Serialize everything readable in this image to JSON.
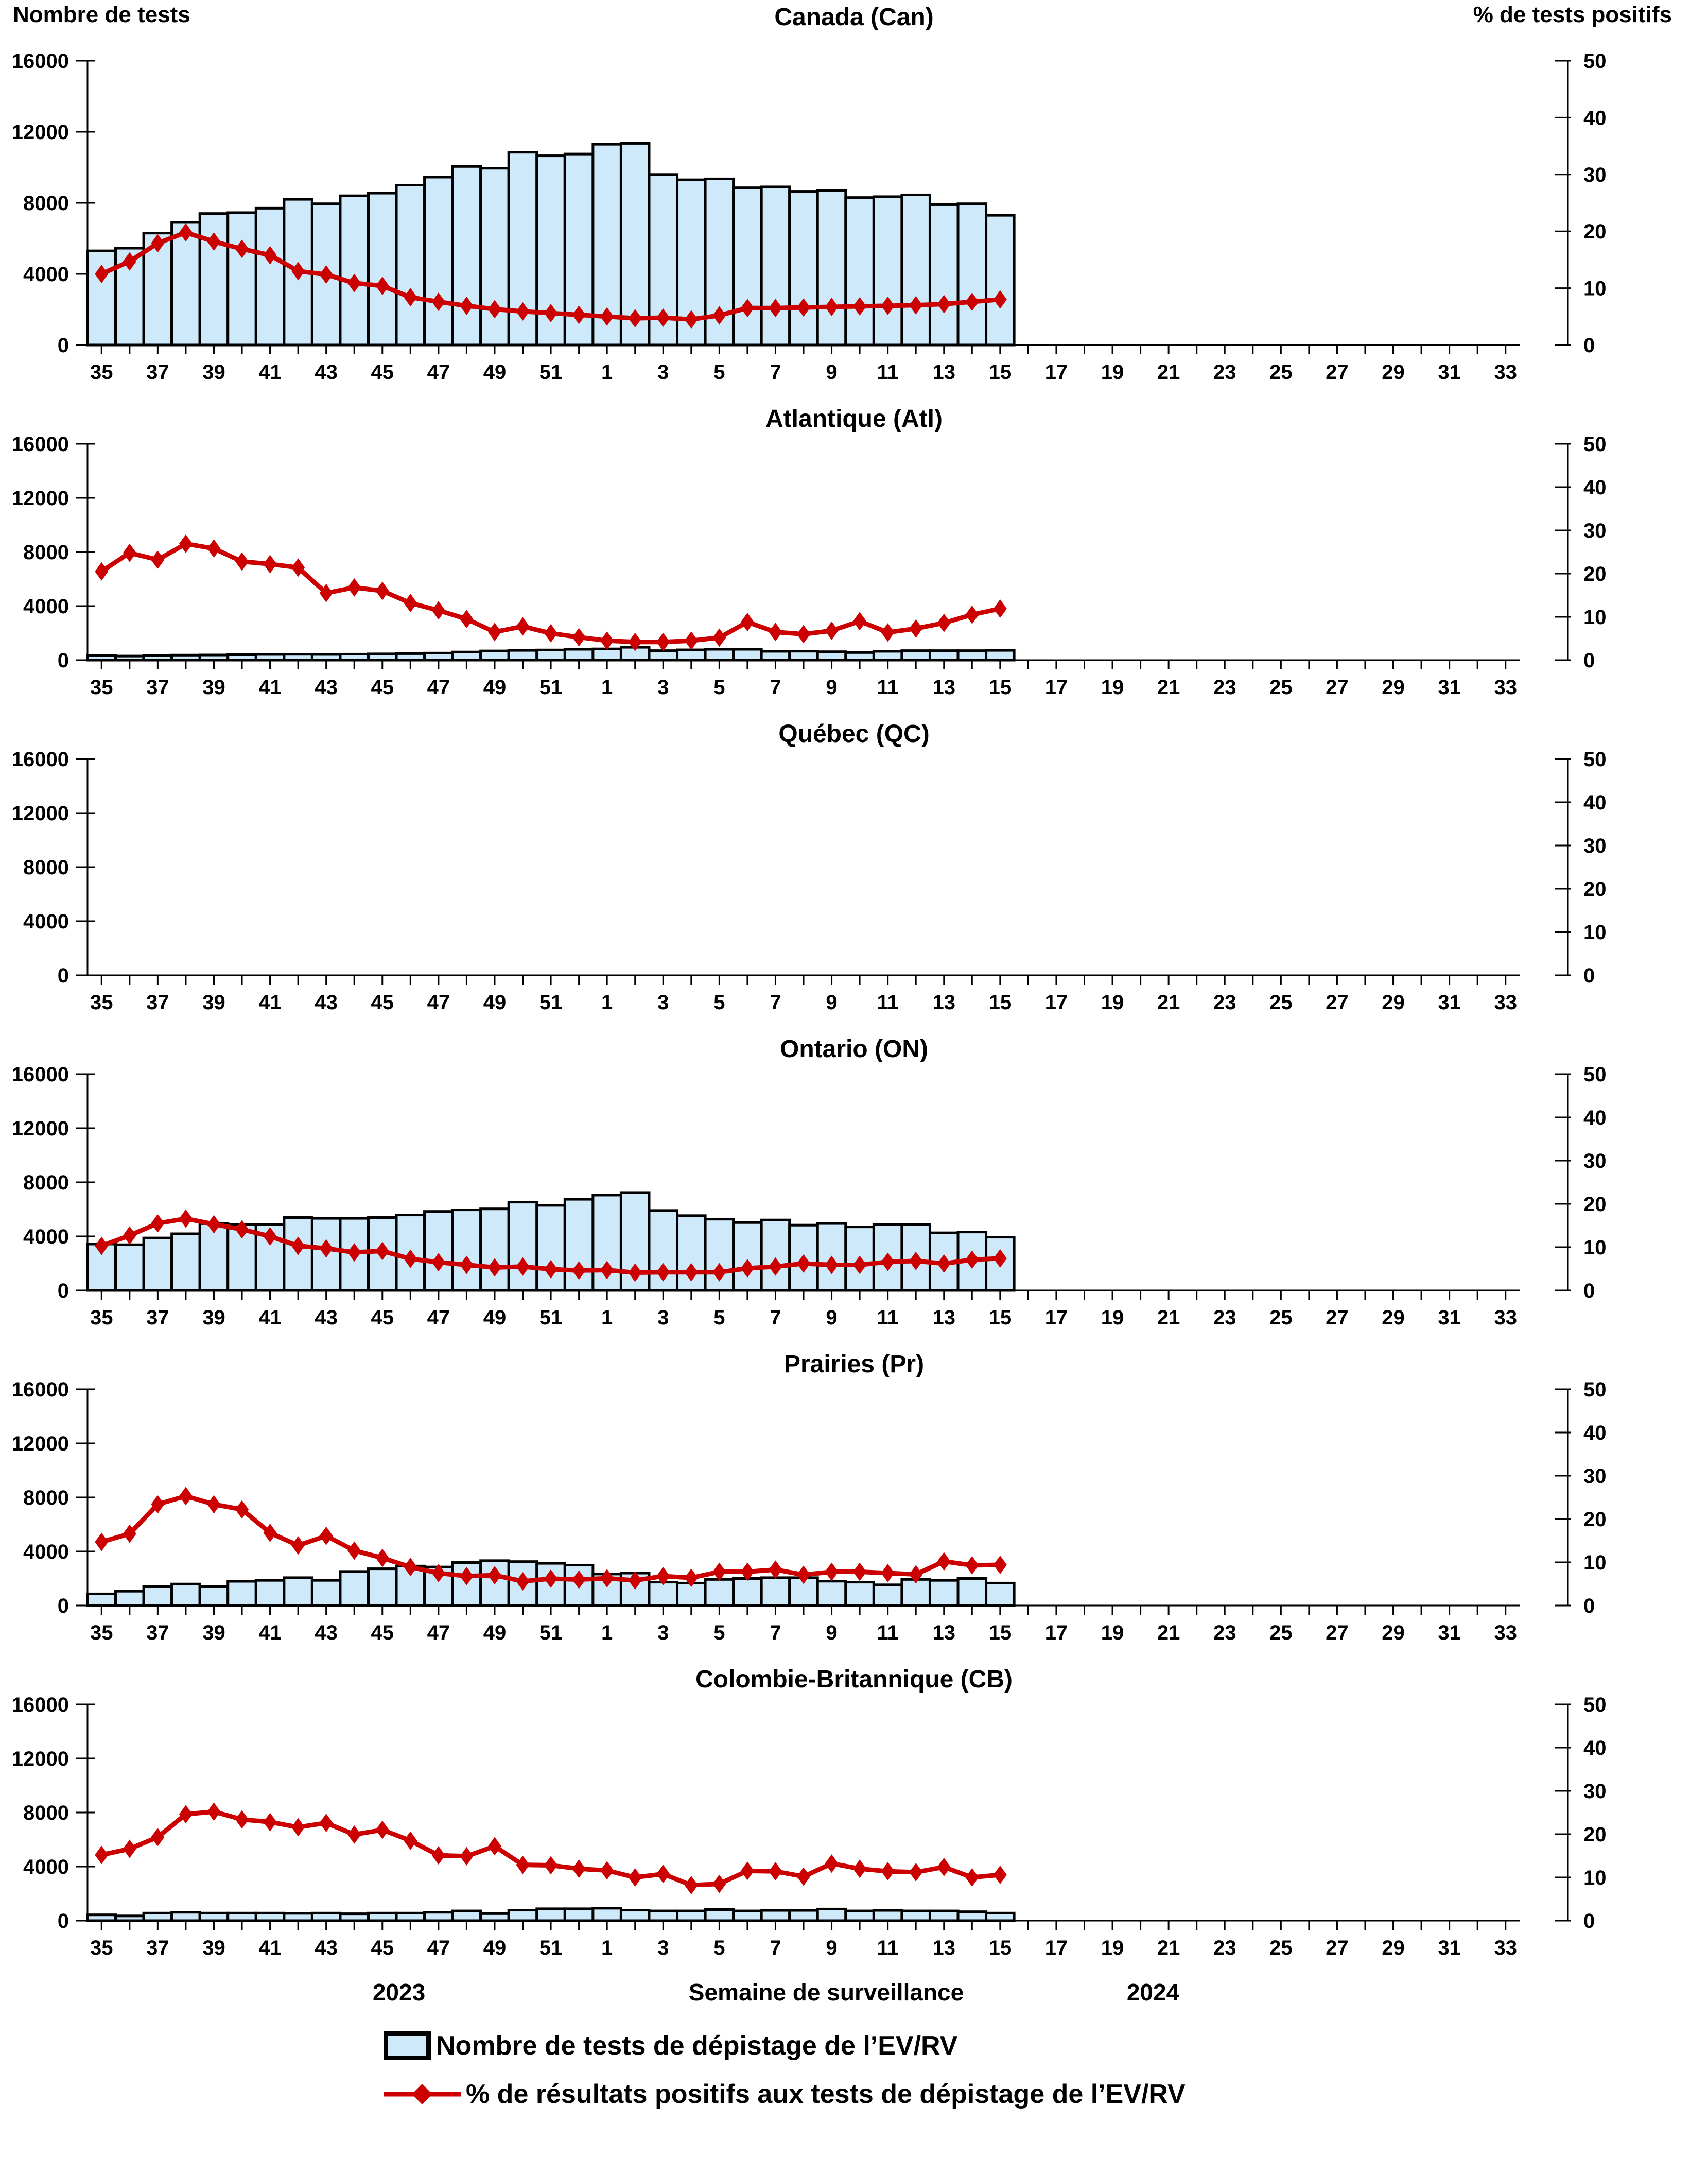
{
  "footer": {
    "year_left": "2023",
    "xlabel": "Semaine de surveillance",
    "year_right": "2024"
  },
  "legend": {
    "bars_label": "Nombre de tests de dépistage de l’EV/RV",
    "line_label": "% de résultats positifs aux tests de dépistage de l’EV/RV"
  },
  "colors": {
    "bar_fill": "#CDE9FA",
    "bar_border": "#000000",
    "line": "#CC0000",
    "text": "#000000"
  },
  "chart_data": {
    "type": "bar",
    "subtype": "dual-axis bar + line, 6 stacked panels",
    "categories": [
      "35",
      "36",
      "37",
      "38",
      "39",
      "40",
      "41",
      "42",
      "43",
      "44",
      "45",
      "46",
      "47",
      "48",
      "49",
      "50",
      "51",
      "52",
      "1",
      "2",
      "3",
      "4",
      "5",
      "6",
      "7",
      "8",
      "9",
      "10",
      "11",
      "12",
      "13",
      "14",
      "15",
      "16",
      "17",
      "18",
      "19",
      "20",
      "21",
      "22",
      "23",
      "24",
      "25",
      "26",
      "27",
      "28",
      "29",
      "30",
      "31",
      "32",
      "33"
    ],
    "x_tick_labels": [
      "35",
      "37",
      "39",
      "41",
      "43",
      "45",
      "47",
      "49",
      "51",
      "1",
      "3",
      "5",
      "7",
      "9",
      "11",
      "13",
      "15",
      "17",
      "19",
      "21",
      "23",
      "25",
      "27",
      "29",
      "31",
      "33"
    ],
    "left_axis": {
      "label": "Nombre de tests",
      "ticks": [
        0,
        4000,
        8000,
        12000,
        16000
      ],
      "max": 16000
    },
    "right_axis": {
      "label": "% de tests positifs",
      "ticks": [
        0,
        10,
        20,
        30,
        40,
        50
      ],
      "max": 50
    },
    "grid": "off",
    "legend_position": "bottom",
    "note": "data present for weeks 35-52 of 2023 and 1-15 of 2024; Québec panel empty",
    "panels": [
      {
        "title": "Canada (Can)",
        "tests": [
          5300,
          5450,
          6300,
          6900,
          7400,
          7450,
          7700,
          8200,
          7950,
          8400,
          8550,
          9000,
          9450,
          10050,
          9950,
          10850,
          10650,
          10750,
          11300,
          11350,
          9600,
          9300,
          9350,
          8850,
          8900,
          8650,
          8700,
          8300,
          8350,
          8450,
          7900,
          7950,
          7300
        ],
        "pct_positive": [
          12.5,
          14.7,
          17.9,
          19.8,
          18.2,
          16.9,
          15.8,
          13.0,
          12.4,
          10.9,
          10.4,
          8.4,
          7.6,
          6.9,
          6.3,
          5.9,
          5.6,
          5.3,
          5.0,
          4.7,
          4.8,
          4.5,
          5.2,
          6.5,
          6.5,
          6.6,
          6.7,
          6.8,
          6.9,
          7.0,
          7.2,
          7.6,
          8.0
        ]
      },
      {
        "title": "Atlantique (Atl)",
        "tests": [
          330,
          300,
          350,
          370,
          380,
          400,
          420,
          430,
          420,
          440,
          460,
          480,
          520,
          600,
          680,
          720,
          750,
          800,
          830,
          950,
          700,
          760,
          800,
          800,
          650,
          660,
          620,
          560,
          650,
          700,
          700,
          700,
          720
        ],
        "pct_positive": [
          20.5,
          24.8,
          23.2,
          26.9,
          25.8,
          22.8,
          22.2,
          21.4,
          15.5,
          16.8,
          16.0,
          13.2,
          11.5,
          9.5,
          6.5,
          7.8,
          6.2,
          5.3,
          4.5,
          4.2,
          4.2,
          4.5,
          5.2,
          8.8,
          6.5,
          6.0,
          6.8,
          9.0,
          6.4,
          7.3,
          8.6,
          10.5,
          11.9
        ]
      },
      {
        "title": "Québec (QC)",
        "tests": [],
        "pct_positive": []
      },
      {
        "title": "Ontario (ON)",
        "tests": [
          3430,
          3380,
          3880,
          4190,
          4940,
          4890,
          4890,
          5390,
          5330,
          5330,
          5390,
          5580,
          5840,
          5960,
          6030,
          6530,
          6290,
          6740,
          7050,
          7240,
          5910,
          5530,
          5270,
          5020,
          5210,
          4830,
          4950,
          4700,
          4890,
          4890,
          4260,
          4320,
          3940
        ],
        "pct_positive": [
          10.3,
          12.7,
          15.5,
          16.6,
          15.3,
          14.1,
          12.5,
          10.3,
          9.7,
          8.8,
          9.1,
          7.3,
          6.5,
          5.9,
          5.3,
          5.5,
          4.9,
          4.6,
          4.7,
          4.1,
          4.2,
          4.2,
          4.2,
          5.1,
          5.5,
          6.2,
          5.9,
          5.9,
          6.6,
          6.8,
          6.2,
          7.1,
          7.4
        ]
      },
      {
        "title": "Prairies (Pr)",
        "tests": [
          860,
          1060,
          1390,
          1590,
          1390,
          1790,
          1860,
          2060,
          1860,
          2520,
          2720,
          2920,
          2850,
          3180,
          3320,
          3250,
          3120,
          2990,
          2330,
          2400,
          1730,
          1660,
          1930,
          2000,
          2060,
          2060,
          1800,
          1730,
          1530,
          1930,
          1860,
          2000,
          1660
        ],
        "pct_positive": [
          14.7,
          16.6,
          23.4,
          25.3,
          23.4,
          22.2,
          16.8,
          13.9,
          16.1,
          12.7,
          11.0,
          8.9,
          7.5,
          6.8,
          7.0,
          5.6,
          6.2,
          6.0,
          6.3,
          5.8,
          6.8,
          6.4,
          7.8,
          7.8,
          8.3,
          7.1,
          7.8,
          7.8,
          7.5,
          7.2,
          10.2,
          9.3,
          9.4
        ]
      },
      {
        "title": "Colombie-Britannique (CB)",
        "tests": [
          430,
          350,
          560,
          620,
          560,
          560,
          560,
          540,
          560,
          510,
          560,
          560,
          620,
          720,
          520,
          780,
          880,
          880,
          920,
          780,
          720,
          720,
          820,
          720,
          760,
          760,
          860,
          720,
          760,
          720,
          720,
          660,
          560
        ],
        "pct_positive": [
          15.2,
          16.6,
          19.3,
          24.6,
          25.2,
          23.4,
          22.8,
          21.6,
          22.6,
          19.9,
          21.0,
          18.5,
          15.1,
          14.9,
          17.2,
          12.9,
          12.8,
          12.0,
          11.6,
          10.0,
          10.8,
          8.2,
          8.5,
          11.5,
          11.4,
          10.2,
          13.2,
          12.0,
          11.4,
          11.2,
          12.4,
          10.0,
          10.6
        ]
      }
    ]
  }
}
